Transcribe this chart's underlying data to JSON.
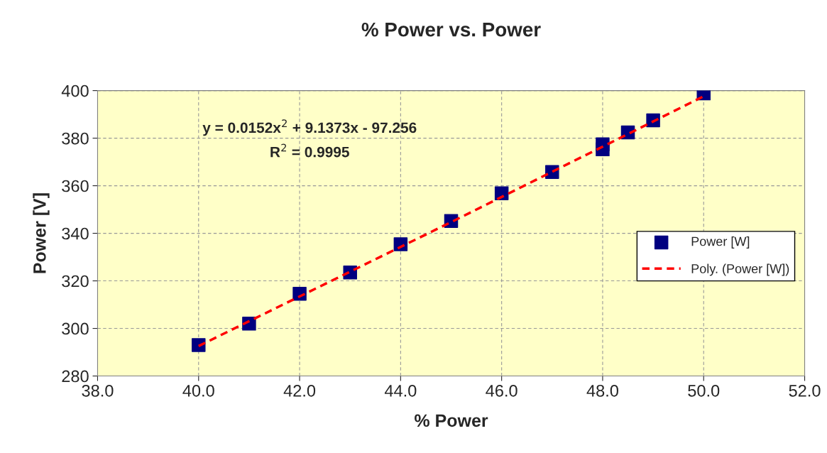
{
  "chart_data": {
    "type": "scatter",
    "title": "% Power vs. Power",
    "xlabel": "% Power",
    "ylabel": "Power [V]",
    "xlim": [
      38,
      52
    ],
    "xticks": [
      {
        "value": 38,
        "label": "38.0"
      },
      {
        "value": 40,
        "label": "40.0"
      },
      {
        "value": 42,
        "label": "42.0"
      },
      {
        "value": 44,
        "label": "44.0"
      },
      {
        "value": 46,
        "label": "46.0"
      },
      {
        "value": 48,
        "label": "48.0"
      },
      {
        "value": 50,
        "label": "50.0"
      },
      {
        "value": 52,
        "label": "52.0"
      }
    ],
    "ylim": [
      280,
      400
    ],
    "yticks": [
      280,
      300,
      320,
      340,
      360,
      380,
      400
    ],
    "grid": true,
    "legend": "right",
    "series": [
      {
        "name": "Power [W]",
        "marker": "square",
        "color": "#000080",
        "x": [
          40,
          41,
          42,
          43,
          44,
          45,
          46,
          47,
          48,
          48,
          48.5,
          49,
          50
        ],
        "values": [
          293,
          302,
          314.6,
          323.5,
          335.4,
          345.2,
          356.8,
          365.8,
          377.4,
          375.3,
          382.4,
          387.5,
          398.8
        ]
      },
      {
        "name": "Poly. (Power [W])",
        "type": "line",
        "marker": "none",
        "line_style": "dashed",
        "color": "#ff0000",
        "x": [
          40,
          45,
          50
        ],
        "values": [
          292.6,
          344.7,
          397.6
        ]
      }
    ],
    "annotations": [
      "y = 0.0152x$^{2}$ + 9.1373x - 97.256",
      "R$^{2}$ = 0.9995"
    ]
  }
}
